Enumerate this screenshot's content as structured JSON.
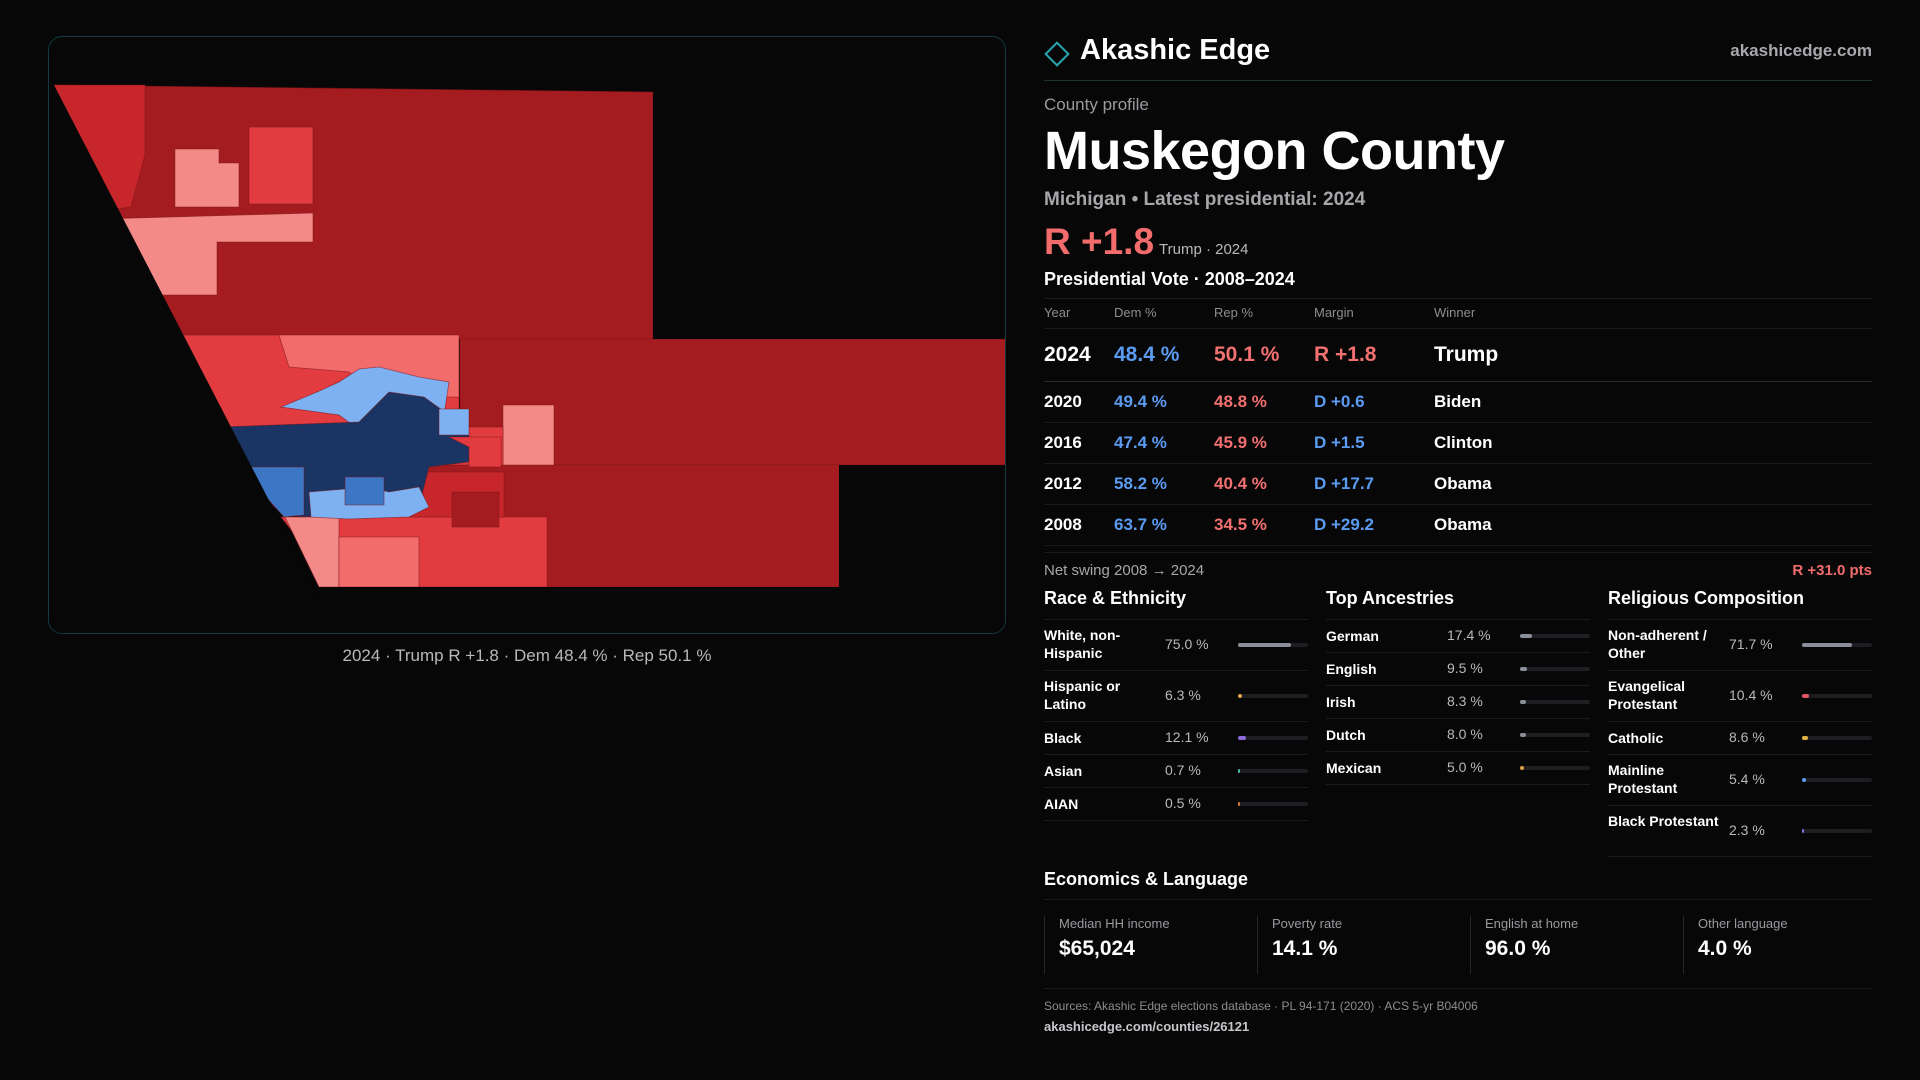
{
  "brand": {
    "name": "Akashic Edge",
    "url": "akashicedge.com"
  },
  "profile": {
    "kicker": "County profile",
    "county": "Muskegon County",
    "subline": "Michigan • Latest presidential: 2024",
    "margin": "R +1.8",
    "margin_note": "Trump · 2024"
  },
  "map": {
    "caption": "2024 · Trump R +1.8 · Dem 48.4 % · Rep 50.1 %",
    "colors": {
      "dark_red": "#a51c20",
      "red": "#e23b40",
      "light_red": "#f38a88",
      "navy": "#1a3563",
      "mid_blue": "#3d76c4",
      "light_blue": "#7eb1f2"
    }
  },
  "votes": {
    "title": "Presidential Vote · 2008–2024",
    "headers": [
      "Year",
      "Dem %",
      "Rep %",
      "Margin",
      "Winner"
    ],
    "rows": [
      {
        "year": "2024",
        "dem": "48.4 %",
        "rep": "50.1 %",
        "margin": "R +1.8",
        "winner": "Trump",
        "party": "r"
      },
      {
        "year": "2020",
        "dem": "49.4 %",
        "rep": "48.8 %",
        "margin": "D +0.6",
        "winner": "Biden",
        "party": "d"
      },
      {
        "year": "2016",
        "dem": "47.4 %",
        "rep": "45.9 %",
        "margin": "D +1.5",
        "winner": "Clinton",
        "party": "d"
      },
      {
        "year": "2012",
        "dem": "58.2 %",
        "rep": "40.4 %",
        "margin": "D +17.7",
        "winner": "Obama",
        "party": "d"
      },
      {
        "year": "2008",
        "dem": "63.7 %",
        "rep": "34.5 %",
        "margin": "D +29.2",
        "winner": "Obama",
        "party": "d"
      }
    ],
    "swing_label": "Net swing 2008 → 2024",
    "swing_value": "R +31.0 pts"
  },
  "race": {
    "title": "Race & Ethnicity",
    "items": [
      {
        "label": "White, non-Hispanic",
        "pct": "75.0 %",
        "value": 75.0,
        "color": "#8a8f99"
      },
      {
        "label": "Hispanic or Latino",
        "pct": "6.3 %",
        "value": 6.3,
        "color": "#e0a040"
      },
      {
        "label": "Black",
        "pct": "12.1 %",
        "value": 12.1,
        "color": "#8c6ad8"
      },
      {
        "label": "Asian",
        "pct": "0.7 %",
        "value": 0.7,
        "color": "#4bb6a8"
      },
      {
        "label": "AIAN",
        "pct": "0.5 %",
        "value": 0.5,
        "color": "#d07a3a"
      }
    ]
  },
  "ancestry": {
    "title": "Top Ancestries",
    "items": [
      {
        "label": "German",
        "pct": "17.4 %",
        "value": 17.4,
        "color": "#8a8f99"
      },
      {
        "label": "English",
        "pct": "9.5 %",
        "value": 9.5,
        "color": "#8a8f99"
      },
      {
        "label": "Irish",
        "pct": "8.3 %",
        "value": 8.3,
        "color": "#8a8f99"
      },
      {
        "label": "Dutch",
        "pct": "8.0 %",
        "value": 8.0,
        "color": "#8a8f99"
      },
      {
        "label": "Mexican",
        "pct": "5.0 %",
        "value": 5.0,
        "color": "#e0a040"
      }
    ]
  },
  "religion": {
    "title": "Religious Composition",
    "items": [
      {
        "label": "Non-adherent / Other",
        "pct": "71.7 %",
        "value": 71.7,
        "color": "#8a8f99"
      },
      {
        "label": "Evangelical Protestant",
        "pct": "10.4 %",
        "value": 10.4,
        "color": "#e0575f"
      },
      {
        "label": "Catholic",
        "pct": "8.6 %",
        "value": 8.6,
        "color": "#e0b040"
      },
      {
        "label": "Mainline Protestant",
        "pct": "5.4 %",
        "value": 5.4,
        "color": "#5b9cf2"
      },
      {
        "label": "Black Protestant",
        "pct": "2.3 %",
        "value": 2.3,
        "color": "#8c6ad8"
      }
    ]
  },
  "economics": {
    "title": "Economics & Language",
    "items": [
      {
        "label": "Median HH income",
        "value": "$65,024"
      },
      {
        "label": "Poverty rate",
        "value": "14.1 %"
      },
      {
        "label": "English at home",
        "value": "96.0 %"
      },
      {
        "label": "Other language",
        "value": "4.0 %"
      }
    ]
  },
  "sources": "Sources: Akashic Edge elections database · PL 94-171 (2020) · ACS 5-yr B04006",
  "source_url": "akashicedge.com/counties/26121"
}
